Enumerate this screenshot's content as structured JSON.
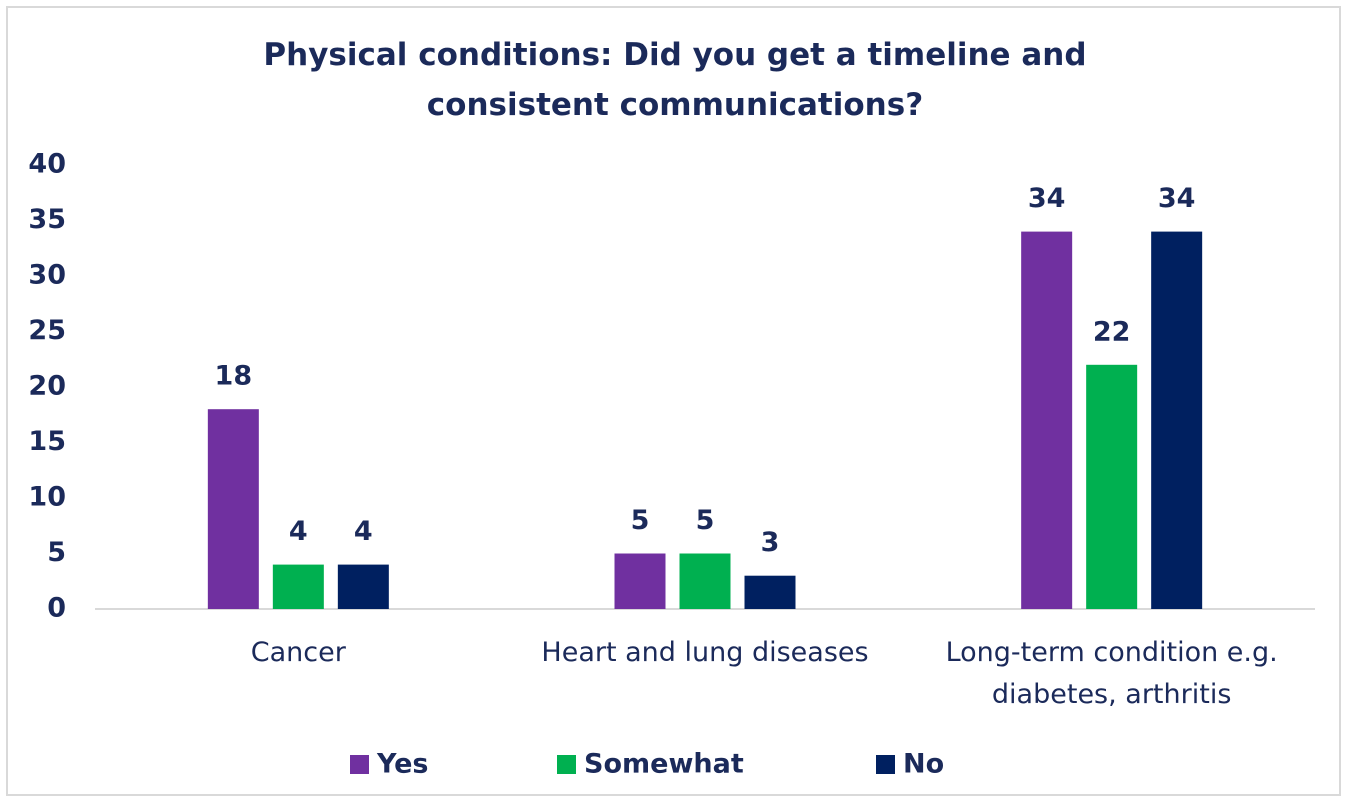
{
  "chart_data": {
    "type": "bar",
    "title": "Physical conditions: Did you get a timeline and consistent communications?",
    "categories": [
      "Cancer",
      "Heart and lung diseases",
      "Long-term condition e.g. diabetes, arthritis"
    ],
    "series": [
      {
        "name": "Yes",
        "color": "#7030a0",
        "values": [
          18,
          5,
          34
        ]
      },
      {
        "name": "Somewhat",
        "color": "#00b050",
        "values": [
          4,
          5,
          22
        ]
      },
      {
        "name": "No",
        "color": "#002060",
        "values": [
          4,
          3,
          34
        ]
      }
    ],
    "ylim": [
      0,
      40
    ],
    "yticks": [
      0,
      5,
      10,
      15,
      20,
      25,
      30,
      35,
      40
    ],
    "grid": false,
    "legend": "bottom"
  }
}
